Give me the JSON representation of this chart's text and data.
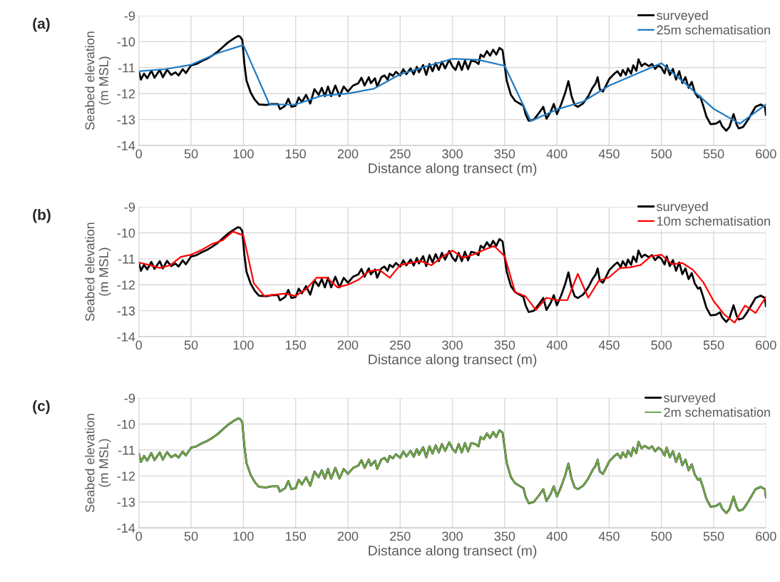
{
  "chart_data": [
    {
      "type": "line",
      "title": "(a)",
      "xlabel": "Distance along transect (m)",
      "ylabel": "Seabed elevation\n(m MSL)",
      "xlim": [
        0,
        600
      ],
      "xticks": [
        0,
        50,
        100,
        150,
        200,
        250,
        300,
        350,
        400,
        450,
        500,
        550,
        600
      ],
      "ylim": [
        -14,
        -9
      ],
      "yticks": [
        -14,
        -13,
        -12,
        -11,
        -10,
        -9
      ],
      "grid": true,
      "legend": "top right",
      "marker": "none",
      "line_style": "solid",
      "series": [
        {
          "name": "surveyed",
          "color": "#000000",
          "x": [
            0,
            2,
            5,
            8,
            12,
            15,
            20,
            23,
            27,
            31,
            35,
            38,
            42,
            45,
            50,
            55,
            60,
            65,
            70,
            75,
            80,
            85,
            90,
            95,
            97,
            99,
            101,
            103,
            107,
            111,
            115,
            122,
            127,
            133,
            135,
            140,
            143,
            146,
            150,
            153,
            156,
            160,
            164,
            168,
            172,
            175,
            178,
            181,
            184,
            188,
            192,
            196,
            200,
            205,
            210,
            213,
            216,
            220,
            222,
            226,
            228,
            232,
            235,
            238,
            240,
            243,
            246,
            250,
            253,
            256,
            260,
            263,
            266,
            268,
            272,
            275,
            278,
            281,
            284,
            287,
            290,
            293,
            297,
            300,
            303,
            306,
            309,
            312,
            315,
            318,
            322,
            325,
            327,
            330,
            333,
            336,
            339,
            342,
            345,
            348,
            350,
            352,
            356,
            360,
            365,
            368,
            370,
            373,
            378,
            383,
            387,
            390,
            394,
            397,
            400,
            404,
            408,
            411,
            414,
            417,
            420,
            425,
            430,
            434,
            437,
            439,
            441,
            444,
            447,
            450,
            455,
            458,
            461,
            463,
            466,
            468,
            471,
            473,
            476,
            478,
            481,
            484,
            488,
            491,
            494,
            497,
            500,
            503,
            505,
            508,
            511,
            514,
            517,
            520,
            523,
            526,
            529,
            532,
            535,
            537,
            540,
            543,
            547,
            552,
            556,
            558,
            562,
            565,
            569,
            572,
            574,
            578,
            582,
            586,
            590,
            595,
            599,
            600
          ],
          "values": [
            -11.14,
            -11.46,
            -11.23,
            -11.41,
            -11.12,
            -11.39,
            -11.09,
            -11.37,
            -11.08,
            -11.28,
            -11.18,
            -11.3,
            -11.06,
            -11.21,
            -10.91,
            -10.86,
            -10.75,
            -10.66,
            -10.54,
            -10.4,
            -10.22,
            -10.04,
            -9.9,
            -9.78,
            -9.81,
            -9.94,
            -10.86,
            -11.5,
            -11.96,
            -12.24,
            -12.42,
            -12.44,
            -12.4,
            -12.4,
            -12.6,
            -12.47,
            -12.2,
            -12.51,
            -12.47,
            -12.15,
            -12.33,
            -12.05,
            -12.38,
            -11.83,
            -12.05,
            -11.78,
            -12.1,
            -11.73,
            -12.1,
            -11.69,
            -12.1,
            -11.73,
            -11.92,
            -11.69,
            -11.6,
            -11.39,
            -11.69,
            -11.37,
            -11.6,
            -11.41,
            -11.73,
            -11.37,
            -11.3,
            -11.46,
            -11.23,
            -11.32,
            -11.16,
            -11.3,
            -11.06,
            -11.25,
            -11.03,
            -11.26,
            -10.97,
            -11.18,
            -10.9,
            -11.28,
            -10.86,
            -11.14,
            -10.82,
            -11.09,
            -10.77,
            -11.03,
            -10.7,
            -10.95,
            -11.09,
            -10.77,
            -11.09,
            -10.73,
            -11.06,
            -10.73,
            -10.77,
            -10.86,
            -10.5,
            -10.59,
            -10.36,
            -10.54,
            -10.31,
            -10.5,
            -10.24,
            -10.33,
            -10.91,
            -11.5,
            -12.05,
            -12.28,
            -12.4,
            -12.47,
            -12.79,
            -13.05,
            -13.0,
            -12.74,
            -12.51,
            -12.97,
            -12.7,
            -12.4,
            -12.79,
            -12.42,
            -11.96,
            -11.52,
            -12.1,
            -12.44,
            -12.51,
            -12.38,
            -12.1,
            -11.78,
            -11.61,
            -11.37,
            -11.83,
            -11.92,
            -11.69,
            -11.44,
            -11.23,
            -11.14,
            -11.32,
            -11.09,
            -11.28,
            -11.03,
            -11.23,
            -10.91,
            -11.12,
            -10.68,
            -10.94,
            -10.84,
            -10.94,
            -10.86,
            -11.05,
            -10.91,
            -11.0,
            -11.22,
            -10.91,
            -11.28,
            -11.05,
            -11.46,
            -11.14,
            -11.59,
            -11.37,
            -11.78,
            -11.55,
            -11.96,
            -12.15,
            -12.1,
            -12.47,
            -12.88,
            -13.18,
            -13.16,
            -13.06,
            -13.25,
            -13.43,
            -13.29,
            -12.79,
            -13.2,
            -13.34,
            -13.29,
            -13.06,
            -12.79,
            -12.51,
            -12.42,
            -12.51,
            -12.83
          ]
        },
        {
          "name": "25m schematisation",
          "color": "#1f7bc4",
          "x": [
            0,
            25,
            50,
            75,
            100,
            125,
            150,
            175,
            200,
            225,
            250,
            275,
            300,
            325,
            350,
            375,
            400,
            425,
            450,
            475,
            500,
            525,
            550,
            575,
            600
          ],
          "values": [
            -11.14,
            -11.06,
            -10.89,
            -10.45,
            -10.13,
            -12.42,
            -12.42,
            -12.08,
            -12.0,
            -11.81,
            -11.26,
            -10.95,
            -10.66,
            -10.7,
            -10.93,
            -13.06,
            -12.61,
            -12.31,
            -11.69,
            -11.26,
            -10.83,
            -11.69,
            -12.59,
            -13.16,
            -12.42
          ]
        }
      ]
    },
    {
      "type": "line",
      "title": "(b)",
      "xlabel": "Distance along transect (m)",
      "ylabel": "Seabed elevation\n(m MSL)",
      "xlim": [
        0,
        600
      ],
      "xticks": [
        0,
        50,
        100,
        150,
        200,
        250,
        300,
        350,
        400,
        450,
        500,
        550,
        600
      ],
      "ylim": [
        -14,
        -9
      ],
      "yticks": [
        -14,
        -13,
        -12,
        -11,
        -10,
        -9
      ],
      "grid": true,
      "legend": "top right",
      "marker": "none",
      "line_style": "solid",
      "series": [
        {
          "name": "surveyed",
          "color": "#000000",
          "x": [
            0,
            2,
            5,
            8,
            12,
            15,
            20,
            23,
            27,
            31,
            35,
            38,
            42,
            45,
            50,
            55,
            60,
            65,
            70,
            75,
            80,
            85,
            90,
            95,
            97,
            99,
            101,
            103,
            107,
            111,
            115,
            122,
            127,
            133,
            135,
            140,
            143,
            146,
            150,
            153,
            156,
            160,
            164,
            168,
            172,
            175,
            178,
            181,
            184,
            188,
            192,
            196,
            200,
            205,
            210,
            213,
            216,
            220,
            222,
            226,
            228,
            232,
            235,
            238,
            240,
            243,
            246,
            250,
            253,
            256,
            260,
            263,
            266,
            268,
            272,
            275,
            278,
            281,
            284,
            287,
            290,
            293,
            297,
            300,
            303,
            306,
            309,
            312,
            315,
            318,
            322,
            325,
            327,
            330,
            333,
            336,
            339,
            342,
            345,
            348,
            350,
            352,
            356,
            360,
            365,
            368,
            370,
            373,
            378,
            383,
            387,
            390,
            394,
            397,
            400,
            404,
            408,
            411,
            414,
            417,
            420,
            425,
            430,
            434,
            437,
            439,
            441,
            444,
            447,
            450,
            455,
            458,
            461,
            463,
            466,
            468,
            471,
            473,
            476,
            478,
            481,
            484,
            488,
            491,
            494,
            497,
            500,
            503,
            505,
            508,
            511,
            514,
            517,
            520,
            523,
            526,
            529,
            532,
            535,
            537,
            540,
            543,
            547,
            552,
            556,
            558,
            562,
            565,
            569,
            572,
            574,
            578,
            582,
            586,
            590,
            595,
            599,
            600
          ],
          "values": [
            -11.14,
            -11.46,
            -11.23,
            -11.41,
            -11.12,
            -11.39,
            -11.09,
            -11.37,
            -11.08,
            -11.28,
            -11.18,
            -11.3,
            -11.06,
            -11.21,
            -10.91,
            -10.86,
            -10.75,
            -10.66,
            -10.54,
            -10.4,
            -10.22,
            -10.04,
            -9.9,
            -9.78,
            -9.81,
            -9.94,
            -10.86,
            -11.5,
            -11.96,
            -12.24,
            -12.42,
            -12.44,
            -12.4,
            -12.4,
            -12.6,
            -12.47,
            -12.2,
            -12.51,
            -12.47,
            -12.15,
            -12.33,
            -12.05,
            -12.38,
            -11.83,
            -12.05,
            -11.78,
            -12.1,
            -11.73,
            -12.1,
            -11.69,
            -12.1,
            -11.73,
            -11.92,
            -11.69,
            -11.6,
            -11.39,
            -11.69,
            -11.37,
            -11.6,
            -11.41,
            -11.73,
            -11.37,
            -11.3,
            -11.46,
            -11.23,
            -11.32,
            -11.16,
            -11.3,
            -11.06,
            -11.25,
            -11.03,
            -11.26,
            -10.97,
            -11.18,
            -10.9,
            -11.28,
            -10.86,
            -11.14,
            -10.82,
            -11.09,
            -10.77,
            -11.03,
            -10.7,
            -10.95,
            -11.09,
            -10.77,
            -11.09,
            -10.73,
            -11.06,
            -10.73,
            -10.77,
            -10.86,
            -10.5,
            -10.59,
            -10.36,
            -10.54,
            -10.31,
            -10.5,
            -10.24,
            -10.33,
            -10.91,
            -11.5,
            -12.05,
            -12.28,
            -12.4,
            -12.47,
            -12.79,
            -13.05,
            -13.0,
            -12.74,
            -12.51,
            -12.97,
            -12.7,
            -12.4,
            -12.79,
            -12.42,
            -11.96,
            -11.52,
            -12.1,
            -12.44,
            -12.51,
            -12.38,
            -12.1,
            -11.78,
            -11.61,
            -11.37,
            -11.83,
            -11.92,
            -11.69,
            -11.44,
            -11.23,
            -11.14,
            -11.32,
            -11.09,
            -11.28,
            -11.03,
            -11.23,
            -10.91,
            -11.12,
            -10.68,
            -10.94,
            -10.84,
            -10.94,
            -10.86,
            -11.05,
            -10.91,
            -11.0,
            -11.22,
            -10.91,
            -11.28,
            -11.05,
            -11.46,
            -11.14,
            -11.59,
            -11.37,
            -11.78,
            -11.55,
            -11.96,
            -12.15,
            -12.1,
            -12.47,
            -12.88,
            -13.18,
            -13.16,
            -13.06,
            -13.25,
            -13.43,
            -13.29,
            -12.79,
            -13.2,
            -13.34,
            -13.29,
            -13.06,
            -12.79,
            -12.51,
            -12.42,
            -12.51,
            -12.83
          ]
        },
        {
          "name": "10m schematisation",
          "color": "#ff0000",
          "x": [
            0,
            10,
            20,
            30,
            40,
            50,
            60,
            70,
            80,
            90,
            100,
            110,
            120,
            130,
            140,
            150,
            160,
            170,
            180,
            190,
            200,
            210,
            220,
            230,
            240,
            250,
            260,
            270,
            280,
            290,
            300,
            310,
            320,
            330,
            340,
            350,
            360,
            370,
            380,
            390,
            400,
            410,
            420,
            430,
            440,
            450,
            460,
            470,
            480,
            490,
            500,
            510,
            520,
            530,
            540,
            550,
            560,
            570,
            580,
            590,
            600
          ],
          "values": [
            -11.14,
            -11.24,
            -11.35,
            -11.25,
            -10.93,
            -10.84,
            -10.66,
            -10.43,
            -10.29,
            -9.95,
            -10.1,
            -11.94,
            -12.43,
            -12.38,
            -12.34,
            -12.43,
            -12.17,
            -11.73,
            -11.73,
            -12.1,
            -12.0,
            -11.81,
            -11.48,
            -11.42,
            -11.73,
            -11.24,
            -11.16,
            -11.09,
            -11.25,
            -10.93,
            -10.68,
            -10.96,
            -10.84,
            -10.66,
            -10.5,
            -10.9,
            -12.28,
            -12.45,
            -12.97,
            -12.5,
            -12.59,
            -12.59,
            -11.58,
            -12.5,
            -11.85,
            -11.71,
            -11.36,
            -11.33,
            -11.24,
            -10.9,
            -10.84,
            -11.21,
            -11.16,
            -11.42,
            -11.9,
            -12.63,
            -13.14,
            -13.46,
            -12.8,
            -13.09,
            -12.47
          ]
        }
      ]
    },
    {
      "type": "line",
      "title": "(c)",
      "xlabel": "Distance along transect (m)",
      "ylabel": "Seabed elevation\n(m MSL)",
      "xlim": [
        0,
        600
      ],
      "xticks": [
        0,
        50,
        100,
        150,
        200,
        250,
        300,
        350,
        400,
        450,
        500,
        550,
        600
      ],
      "ylim": [
        -14,
        -9
      ],
      "yticks": [
        -14,
        -13,
        -12,
        -11,
        -10,
        -9
      ],
      "grid": true,
      "legend": "top right",
      "marker": "none",
      "line_style": "solid",
      "series": [
        {
          "name": "surveyed",
          "color": "#000000",
          "x": [
            0,
            2,
            5,
            8,
            12,
            15,
            20,
            23,
            27,
            31,
            35,
            38,
            42,
            45,
            50,
            55,
            60,
            65,
            70,
            75,
            80,
            85,
            90,
            95,
            97,
            99,
            101,
            103,
            107,
            111,
            115,
            122,
            127,
            133,
            135,
            140,
            143,
            146,
            150,
            153,
            156,
            160,
            164,
            168,
            172,
            175,
            178,
            181,
            184,
            188,
            192,
            196,
            200,
            205,
            210,
            213,
            216,
            220,
            222,
            226,
            228,
            232,
            235,
            238,
            240,
            243,
            246,
            250,
            253,
            256,
            260,
            263,
            266,
            268,
            272,
            275,
            278,
            281,
            284,
            287,
            290,
            293,
            297,
            300,
            303,
            306,
            309,
            312,
            315,
            318,
            322,
            325,
            327,
            330,
            333,
            336,
            339,
            342,
            345,
            348,
            350,
            352,
            356,
            360,
            365,
            368,
            370,
            373,
            378,
            383,
            387,
            390,
            394,
            397,
            400,
            404,
            408,
            411,
            414,
            417,
            420,
            425,
            430,
            434,
            437,
            439,
            441,
            444,
            447,
            450,
            455,
            458,
            461,
            463,
            466,
            468,
            471,
            473,
            476,
            478,
            481,
            484,
            488,
            491,
            494,
            497,
            500,
            503,
            505,
            508,
            511,
            514,
            517,
            520,
            523,
            526,
            529,
            532,
            535,
            537,
            540,
            543,
            547,
            552,
            556,
            558,
            562,
            565,
            569,
            572,
            574,
            578,
            582,
            586,
            590,
            595,
            599,
            600
          ],
          "values": [
            -11.14,
            -11.46,
            -11.23,
            -11.41,
            -11.12,
            -11.39,
            -11.09,
            -11.37,
            -11.08,
            -11.28,
            -11.18,
            -11.3,
            -11.06,
            -11.21,
            -10.91,
            -10.86,
            -10.75,
            -10.66,
            -10.54,
            -10.4,
            -10.22,
            -10.04,
            -9.9,
            -9.78,
            -9.81,
            -9.94,
            -10.86,
            -11.5,
            -11.96,
            -12.24,
            -12.42,
            -12.44,
            -12.4,
            -12.4,
            -12.6,
            -12.47,
            -12.2,
            -12.51,
            -12.47,
            -12.15,
            -12.33,
            -12.05,
            -12.38,
            -11.83,
            -12.05,
            -11.78,
            -12.1,
            -11.73,
            -12.1,
            -11.69,
            -12.1,
            -11.73,
            -11.92,
            -11.69,
            -11.6,
            -11.39,
            -11.69,
            -11.37,
            -11.6,
            -11.41,
            -11.73,
            -11.37,
            -11.3,
            -11.46,
            -11.23,
            -11.32,
            -11.16,
            -11.3,
            -11.06,
            -11.25,
            -11.03,
            -11.26,
            -10.97,
            -11.18,
            -10.9,
            -11.28,
            -10.86,
            -11.14,
            -10.82,
            -11.09,
            -10.77,
            -11.03,
            -10.7,
            -10.95,
            -11.09,
            -10.77,
            -11.09,
            -10.73,
            -11.06,
            -10.73,
            -10.77,
            -10.86,
            -10.5,
            -10.59,
            -10.36,
            -10.54,
            -10.31,
            -10.5,
            -10.24,
            -10.33,
            -10.91,
            -11.5,
            -12.05,
            -12.28,
            -12.4,
            -12.47,
            -12.79,
            -13.05,
            -13.0,
            -12.74,
            -12.51,
            -12.97,
            -12.7,
            -12.4,
            -12.79,
            -12.42,
            -11.96,
            -11.52,
            -12.1,
            -12.44,
            -12.51,
            -12.38,
            -12.1,
            -11.78,
            -11.61,
            -11.37,
            -11.83,
            -11.92,
            -11.69,
            -11.44,
            -11.23,
            -11.14,
            -11.32,
            -11.09,
            -11.28,
            -11.03,
            -11.23,
            -10.91,
            -11.12,
            -10.68,
            -10.94,
            -10.84,
            -10.94,
            -10.86,
            -11.05,
            -10.91,
            -11.0,
            -11.22,
            -10.91,
            -11.28,
            -11.05,
            -11.46,
            -11.14,
            -11.59,
            -11.37,
            -11.78,
            -11.55,
            -11.96,
            -12.15,
            -12.1,
            -12.47,
            -12.88,
            -13.18,
            -13.16,
            -13.06,
            -13.25,
            -13.43,
            -13.29,
            -12.79,
            -13.2,
            -13.34,
            -13.29,
            -13.06,
            -12.79,
            -12.51,
            -12.42,
            -12.51,
            -12.83
          ]
        },
        {
          "name": "2m schematisation",
          "color": "#70ad47",
          "x": [
            0,
            2,
            5,
            8,
            12,
            15,
            20,
            23,
            27,
            31,
            35,
            38,
            42,
            45,
            50,
            55,
            60,
            65,
            70,
            75,
            80,
            85,
            90,
            95,
            97,
            99,
            101,
            103,
            107,
            111,
            115,
            122,
            127,
            133,
            135,
            140,
            143,
            146,
            150,
            153,
            156,
            160,
            164,
            168,
            172,
            175,
            178,
            181,
            184,
            188,
            192,
            196,
            200,
            205,
            210,
            213,
            216,
            220,
            222,
            226,
            228,
            232,
            235,
            238,
            240,
            243,
            246,
            250,
            253,
            256,
            260,
            263,
            266,
            268,
            272,
            275,
            278,
            281,
            284,
            287,
            290,
            293,
            297,
            300,
            303,
            306,
            309,
            312,
            315,
            318,
            322,
            325,
            327,
            330,
            333,
            336,
            339,
            342,
            345,
            348,
            350,
            352,
            356,
            360,
            365,
            368,
            370,
            373,
            378,
            383,
            387,
            390,
            394,
            397,
            400,
            404,
            408,
            411,
            414,
            417,
            420,
            425,
            430,
            434,
            437,
            439,
            441,
            444,
            447,
            450,
            455,
            458,
            461,
            463,
            466,
            468,
            471,
            473,
            476,
            478,
            481,
            484,
            488,
            491,
            494,
            497,
            500,
            503,
            505,
            508,
            511,
            514,
            517,
            520,
            523,
            526,
            529,
            532,
            535,
            537,
            540,
            543,
            547,
            552,
            556,
            558,
            562,
            565,
            569,
            572,
            574,
            578,
            582,
            586,
            590,
            595,
            599,
            600
          ],
          "values": [
            -11.14,
            -11.46,
            -11.23,
            -11.41,
            -11.12,
            -11.39,
            -11.09,
            -11.37,
            -11.08,
            -11.28,
            -11.18,
            -11.3,
            -11.06,
            -11.21,
            -10.91,
            -10.86,
            -10.75,
            -10.66,
            -10.54,
            -10.4,
            -10.22,
            -10.04,
            -9.9,
            -9.78,
            -9.81,
            -9.94,
            -10.86,
            -11.5,
            -11.96,
            -12.24,
            -12.42,
            -12.44,
            -12.4,
            -12.4,
            -12.6,
            -12.47,
            -12.2,
            -12.51,
            -12.47,
            -12.15,
            -12.33,
            -12.05,
            -12.38,
            -11.83,
            -12.05,
            -11.78,
            -12.1,
            -11.73,
            -12.1,
            -11.69,
            -12.1,
            -11.73,
            -11.92,
            -11.69,
            -11.6,
            -11.39,
            -11.69,
            -11.37,
            -11.6,
            -11.41,
            -11.73,
            -11.37,
            -11.3,
            -11.46,
            -11.23,
            -11.32,
            -11.16,
            -11.3,
            -11.06,
            -11.25,
            -11.03,
            -11.26,
            -10.97,
            -11.18,
            -10.9,
            -11.28,
            -10.86,
            -11.14,
            -10.82,
            -11.09,
            -10.77,
            -11.03,
            -10.7,
            -10.95,
            -11.09,
            -10.77,
            -11.09,
            -10.73,
            -11.06,
            -10.73,
            -10.77,
            -10.86,
            -10.5,
            -10.59,
            -10.36,
            -10.54,
            -10.31,
            -10.5,
            -10.24,
            -10.33,
            -10.91,
            -11.5,
            -12.05,
            -12.28,
            -12.4,
            -12.47,
            -12.79,
            -13.05,
            -13.0,
            -12.74,
            -12.51,
            -12.97,
            -12.7,
            -12.4,
            -12.79,
            -12.42,
            -11.96,
            -11.52,
            -12.1,
            -12.44,
            -12.51,
            -12.38,
            -12.1,
            -11.78,
            -11.61,
            -11.37,
            -11.83,
            -11.92,
            -11.69,
            -11.44,
            -11.23,
            -11.14,
            -11.32,
            -11.09,
            -11.28,
            -11.03,
            -11.23,
            -10.91,
            -11.12,
            -10.68,
            -10.94,
            -10.84,
            -10.94,
            -10.86,
            -11.05,
            -10.91,
            -11.0,
            -11.22,
            -10.91,
            -11.28,
            -11.05,
            -11.46,
            -11.14,
            -11.59,
            -11.37,
            -11.78,
            -11.55,
            -11.96,
            -12.15,
            -12.1,
            -12.47,
            -12.88,
            -13.18,
            -13.16,
            -13.06,
            -13.25,
            -13.43,
            -13.29,
            -12.79,
            -13.2,
            -13.34,
            -13.29,
            -13.06,
            -12.79,
            -12.51,
            -12.42,
            -12.51,
            -12.83
          ]
        }
      ]
    }
  ]
}
